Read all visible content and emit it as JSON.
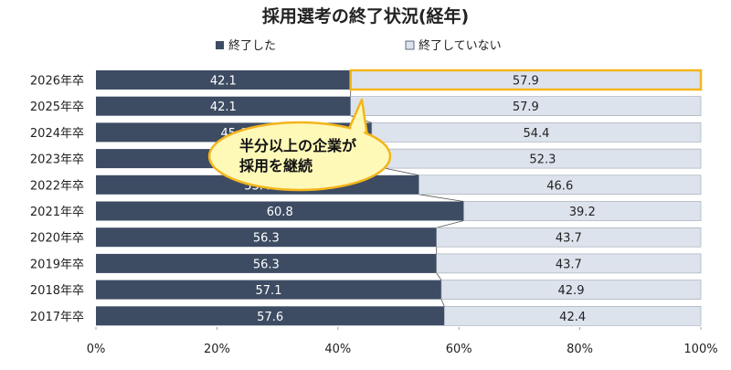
{
  "chart_data": {
    "type": "bar",
    "orientation": "horizontal",
    "stacked": "percent",
    "title": "採用選考の終了状況(経年)",
    "categories": [
      "2026年卒",
      "2025年卒",
      "2024年卒",
      "2023年卒",
      "2022年卒",
      "2021年卒",
      "2020年卒",
      "2019年卒",
      "2018年卒",
      "2017年卒"
    ],
    "series": [
      {
        "name": "終了した",
        "values": [
          42.1,
          42.1,
          45.6,
          47.7,
          53.4,
          60.8,
          56.3,
          56.3,
          57.1,
          57.6
        ],
        "color": "#3d4c63",
        "label_color": "#ffffff"
      },
      {
        "name": "終了していない",
        "values": [
          57.9,
          57.9,
          54.4,
          52.3,
          46.6,
          39.2,
          43.7,
          43.7,
          42.9,
          42.4
        ],
        "color": "#dde3ec",
        "label_color": "#222222"
      }
    ],
    "highlight_category": "2026年卒",
    "highlight_color": "#f3b51b",
    "x_ticks": [
      "0%",
      "20%",
      "40%",
      "60%",
      "80%",
      "100%"
    ],
    "xlim": [
      0,
      100
    ],
    "legend_position": "top-center",
    "grid": false,
    "callout": {
      "lines": [
        "半分以上の企業が",
        "採用を継続"
      ],
      "fill": "#fff9b8",
      "border": "#f3b51b"
    }
  }
}
